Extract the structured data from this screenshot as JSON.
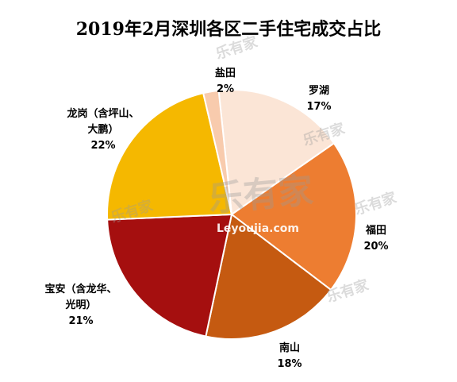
{
  "chart_data": {
    "type": "pie",
    "title": "2019年2月深圳各区二手住宅成交占比",
    "slices": [
      {
        "name": "罗湖",
        "percent_label": "17%",
        "value": 17,
        "color": "#FBE5D6"
      },
      {
        "name": "福田",
        "percent_label": "20%",
        "value": 20,
        "color": "#ED7D31"
      },
      {
        "name": "南山",
        "percent_label": "18%",
        "value": 18,
        "color": "#C55A11"
      },
      {
        "name": "宝安（含龙华、光明）",
        "percent_label": "21%",
        "value": 21,
        "color": "#A50F0F"
      },
      {
        "name": "龙岗（含坪山、大鹏）",
        "percent_label": "22%",
        "value": 22,
        "color": "#F5B800"
      },
      {
        "name": "盐田",
        "percent_label": "2%",
        "value": 2,
        "color": "#F8CBAD"
      }
    ]
  },
  "watermark": {
    "brand": "乐有家",
    "url": "Leyoujia.com"
  }
}
